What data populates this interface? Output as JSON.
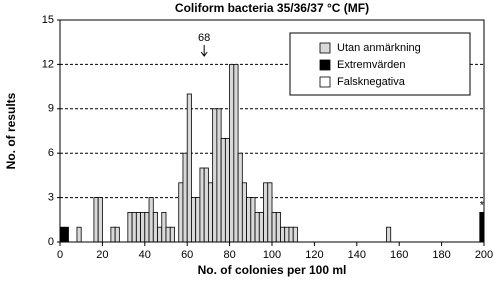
{
  "chart_data": {
    "type": "histogram",
    "title": "Coliform bacteria 35/36/37 °C (MF)",
    "xlabel": "No. of colonies per 100 ml",
    "ylabel": "No. of results",
    "bins": [
      0,
      2,
      4,
      6,
      8,
      10,
      12,
      14,
      16,
      18,
      20,
      22,
      24,
      26,
      28,
      30,
      32,
      34,
      36,
      38,
      40,
      42,
      44,
      46,
      48,
      50,
      52,
      54,
      56,
      58,
      60,
      62,
      64,
      66,
      68,
      70,
      72,
      74,
      76,
      78,
      80,
      82,
      84,
      86,
      88,
      90,
      92,
      94,
      96,
      98,
      100,
      102,
      104,
      106,
      108,
      110,
      112,
      114,
      116,
      118,
      120,
      122,
      124,
      126,
      128,
      130,
      132,
      134,
      136,
      138,
      140,
      142,
      144,
      146,
      148,
      150,
      152,
      154,
      156,
      158,
      160,
      162,
      164,
      166,
      168,
      170,
      172,
      174,
      176,
      178,
      180,
      182,
      184,
      186,
      188,
      190,
      192,
      194,
      196,
      198,
      200
    ],
    "series": [
      {
        "name": "Utan anmärkning",
        "color": "#d9d9d9",
        "values": [
          0,
          0,
          0,
          0,
          1,
          0,
          0,
          0,
          3,
          3,
          0,
          0,
          1,
          1,
          0,
          0,
          2,
          2,
          2,
          2,
          2,
          3,
          2,
          1,
          2,
          1,
          1,
          0,
          4,
          6,
          10,
          3,
          3,
          5,
          5,
          4,
          9,
          9,
          7,
          7,
          12,
          12,
          6,
          4,
          3,
          3,
          2,
          2,
          4,
          4,
          2,
          2,
          1,
          1,
          1,
          1,
          0,
          0,
          0,
          0,
          0,
          0,
          0,
          0,
          0,
          0,
          0,
          0,
          0,
          0,
          0,
          0,
          0,
          0,
          0,
          0,
          0,
          1,
          0,
          0,
          0,
          0,
          0,
          0,
          0,
          0,
          0,
          0,
          0,
          0,
          0,
          0,
          0,
          0,
          0,
          0,
          0,
          0,
          0,
          0
        ]
      },
      {
        "name": "Extremvärden",
        "color": "#000000",
        "values": [
          1,
          1,
          0,
          0,
          0,
          0,
          0,
          0,
          0,
          0,
          0,
          0,
          0,
          0,
          0,
          0,
          0,
          0,
          0,
          0,
          0,
          0,
          0,
          0,
          0,
          0,
          0,
          0,
          0,
          0,
          0,
          0,
          0,
          0,
          0,
          0,
          0,
          0,
          0,
          0,
          0,
          0,
          0,
          0,
          0,
          0,
          0,
          0,
          0,
          0,
          0,
          0,
          0,
          0,
          0,
          0,
          0,
          0,
          0,
          0,
          0,
          0,
          0,
          0,
          0,
          0,
          0,
          0,
          0,
          0,
          0,
          0,
          0,
          0,
          0,
          0,
          0,
          0,
          0,
          0,
          0,
          0,
          0,
          0,
          0,
          0,
          0,
          0,
          0,
          0,
          0,
          0,
          0,
          0,
          0,
          0,
          0,
          0,
          0,
          2
        ]
      },
      {
        "name": "Falsknegativa",
        "color": "#ffffff",
        "values": [
          0,
          0,
          0,
          0,
          0,
          0,
          0,
          0,
          0,
          0,
          0,
          0,
          0,
          0,
          0,
          0,
          0,
          0,
          0,
          0,
          0,
          0,
          0,
          0,
          0,
          0,
          0,
          0,
          0,
          0,
          0,
          0,
          0,
          0,
          0,
          0,
          0,
          0,
          0,
          0,
          0,
          0,
          0,
          0,
          0,
          0,
          0,
          0,
          0,
          0,
          0,
          0,
          0,
          0,
          0,
          0,
          0,
          0,
          0,
          0,
          0,
          0,
          0,
          0,
          0,
          0,
          0,
          0,
          0,
          0,
          0,
          0,
          0,
          0,
          0,
          0,
          0,
          0,
          0,
          0,
          0,
          0,
          0,
          0,
          0,
          0,
          0,
          0,
          0,
          0,
          0,
          0,
          0,
          0,
          0,
          0,
          0,
          0,
          0,
          0
        ]
      }
    ],
    "xlim": [
      0,
      200
    ],
    "xticks": [
      0,
      20,
      40,
      60,
      80,
      100,
      120,
      140,
      160,
      180,
      200
    ],
    "ylim": [
      0,
      15
    ],
    "yticks": [
      0,
      3,
      6,
      9,
      12,
      15
    ],
    "grid": true,
    "legend": "upper right",
    "annotations": [
      {
        "text": "68",
        "x": 68,
        "arrow": true
      },
      {
        "text": "*",
        "x": 199,
        "arrow": false
      }
    ]
  }
}
